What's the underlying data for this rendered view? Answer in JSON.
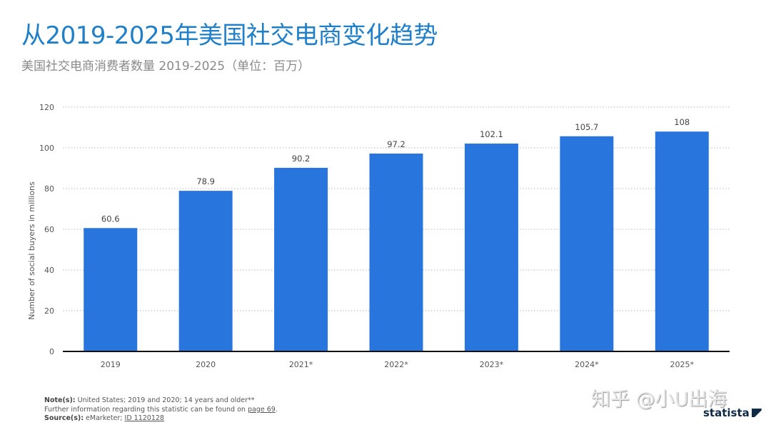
{
  "title": "从2019-2025年美国社交电商变化趋势",
  "subtitle": "美国社交电商消费者数量 2019-2025（单位：百万）",
  "chart_data": {
    "type": "bar",
    "categories": [
      "2019",
      "2020",
      "2021*",
      "2022*",
      "2023*",
      "2024*",
      "2025*"
    ],
    "values": [
      60.6,
      78.9,
      90.2,
      97.2,
      102.1,
      105.7,
      108
    ],
    "value_labels": [
      "60.6",
      "78.9",
      "90.2",
      "97.2",
      "102.1",
      "105.7",
      "108"
    ],
    "ylabel": "Number of social buyers in millions",
    "xlabel": "",
    "ylim": [
      0,
      120
    ],
    "yticks": [
      "0",
      "20",
      "40",
      "60",
      "80",
      "100",
      "120"
    ],
    "grid": "horizontal dotted",
    "bar_color": "#2876dd"
  },
  "footer": {
    "note_label": "Note(s):",
    "note_text": " United States; 2019 and 2020; 14 years and older**",
    "further_text": "Further information regarding this statistic can be found on ",
    "further_link": "page 69",
    "further_end": ".",
    "source_label": "Source(s):",
    "source_text": " eMarketer; ",
    "source_link": "ID 1120128"
  },
  "watermark": "知乎 @小U出海",
  "logo": "statista"
}
